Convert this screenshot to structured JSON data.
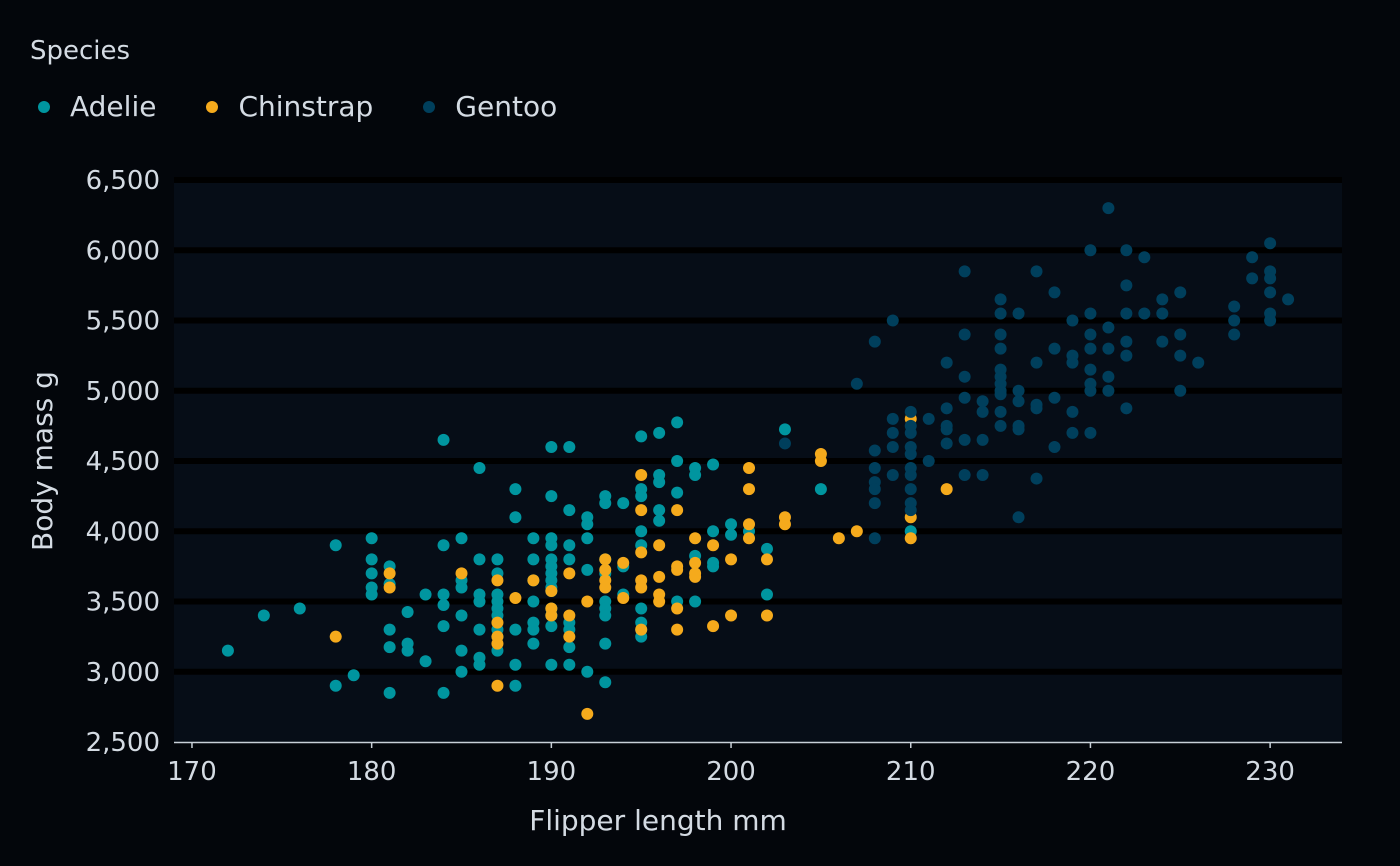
{
  "chart_data": {
    "type": "scatter",
    "xlabel": "Flipper length mm",
    "ylabel": "Body mass g",
    "xlim": [
      169,
      234
    ],
    "ylim": [
      2500,
      6500
    ],
    "x_ticks": [
      "170",
      "180",
      "190",
      "200",
      "210",
      "220",
      "230"
    ],
    "x_tick_values": [
      170,
      180,
      190,
      200,
      210,
      220,
      230
    ],
    "y_ticks": [
      "2,500",
      "3,000",
      "3,500",
      "4,000",
      "4,500",
      "5,000",
      "5,500",
      "6,000",
      "6,500"
    ],
    "y_tick_values": [
      2500,
      3000,
      3500,
      4000,
      4500,
      5000,
      5500,
      6000,
      6500
    ],
    "grid": "horizontal",
    "legend": {
      "title": "Species",
      "placement": "top-left"
    },
    "colors": {
      "background": "#03060b",
      "panel": "#060d17",
      "gridline": "#000000",
      "axis": "#c8d0d8",
      "text": "#d4dbe3"
    },
    "series": [
      {
        "name": "Adelie",
        "color": "#00959f",
        "points": [
          [
            172,
            3150
          ],
          [
            174,
            3400
          ],
          [
            176,
            3450
          ],
          [
            178,
            3900
          ],
          [
            178,
            2900
          ],
          [
            179,
            2975
          ],
          [
            180,
            3950
          ],
          [
            180,
            3800
          ],
          [
            180,
            3700
          ],
          [
            180,
            3600
          ],
          [
            180,
            3550
          ],
          [
            181,
            3750
          ],
          [
            181,
            3625
          ],
          [
            181,
            3300
          ],
          [
            181,
            3175
          ],
          [
            181,
            2850
          ],
          [
            182,
            3425
          ],
          [
            182,
            3200
          ],
          [
            182,
            3150
          ],
          [
            183,
            3550
          ],
          [
            183,
            3075
          ],
          [
            184,
            4650
          ],
          [
            184,
            3900
          ],
          [
            184,
            3550
          ],
          [
            184,
            3475
          ],
          [
            184,
            3325
          ],
          [
            184,
            2850
          ],
          [
            185,
            3950
          ],
          [
            185,
            3650
          ],
          [
            185,
            3600
          ],
          [
            185,
            3400
          ],
          [
            185,
            3150
          ],
          [
            185,
            3000
          ],
          [
            186,
            4450
          ],
          [
            186,
            3800
          ],
          [
            186,
            3550
          ],
          [
            186,
            3500
          ],
          [
            186,
            3300
          ],
          [
            186,
            3100
          ],
          [
            186,
            3050
          ],
          [
            187,
            3800
          ],
          [
            187,
            3700
          ],
          [
            187,
            3550
          ],
          [
            187,
            3500
          ],
          [
            187,
            3450
          ],
          [
            187,
            3400
          ],
          [
            187,
            3300
          ],
          [
            187,
            3250
          ],
          [
            187,
            3150
          ],
          [
            188,
            4300
          ],
          [
            188,
            4100
          ],
          [
            188,
            3300
          ],
          [
            188,
            3050
          ],
          [
            188,
            2900
          ],
          [
            189,
            3950
          ],
          [
            189,
            3800
          ],
          [
            189,
            3650
          ],
          [
            189,
            3500
          ],
          [
            189,
            3350
          ],
          [
            189,
            3300
          ],
          [
            189,
            3200
          ],
          [
            190,
            4600
          ],
          [
            190,
            4250
          ],
          [
            190,
            3950
          ],
          [
            190,
            3900
          ],
          [
            190,
            3800
          ],
          [
            190,
            3750
          ],
          [
            190,
            3700
          ],
          [
            190,
            3650
          ],
          [
            190,
            3600
          ],
          [
            190,
            3575
          ],
          [
            190,
            3450
          ],
          [
            190,
            3400
          ],
          [
            190,
            3325
          ],
          [
            190,
            3050
          ],
          [
            191,
            4600
          ],
          [
            191,
            4150
          ],
          [
            191,
            3900
          ],
          [
            191,
            3800
          ],
          [
            191,
            3350
          ],
          [
            191,
            3300
          ],
          [
            191,
            3175
          ],
          [
            191,
            3050
          ],
          [
            192,
            4100
          ],
          [
            192,
            4050
          ],
          [
            192,
            3950
          ],
          [
            192,
            3725
          ],
          [
            192,
            3000
          ],
          [
            193,
            4250
          ],
          [
            193,
            4200
          ],
          [
            193,
            3800
          ],
          [
            193,
            3700
          ],
          [
            193,
            3500
          ],
          [
            193,
            3450
          ],
          [
            193,
            3400
          ],
          [
            193,
            3200
          ],
          [
            193,
            2925
          ],
          [
            194,
            4200
          ],
          [
            194,
            3750
          ],
          [
            194,
            3550
          ],
          [
            195,
            4675
          ],
          [
            195,
            4300
          ],
          [
            195,
            4250
          ],
          [
            195,
            4000
          ],
          [
            195,
            3900
          ],
          [
            195,
            3450
          ],
          [
            195,
            3350
          ],
          [
            195,
            3300
          ],
          [
            195,
            3250
          ],
          [
            196,
            4700
          ],
          [
            196,
            4400
          ],
          [
            196,
            4350
          ],
          [
            196,
            4150
          ],
          [
            196,
            4075
          ],
          [
            197,
            4775
          ],
          [
            197,
            4500
          ],
          [
            197,
            4275
          ],
          [
            197,
            3500
          ],
          [
            198,
            4450
          ],
          [
            198,
            4400
          ],
          [
            198,
            3825
          ],
          [
            198,
            3500
          ],
          [
            199,
            4475
          ],
          [
            199,
            4000
          ],
          [
            199,
            3775
          ],
          [
            199,
            3750
          ],
          [
            200,
            4050
          ],
          [
            200,
            3975
          ],
          [
            201,
            4000
          ],
          [
            202,
            3875
          ],
          [
            202,
            3550
          ],
          [
            203,
            4725
          ],
          [
            205,
            4300
          ],
          [
            210,
            4000
          ]
        ]
      },
      {
        "name": "Chinstrap",
        "color": "#f5aa1c",
        "points": [
          [
            178,
            3250
          ],
          [
            181,
            3700
          ],
          [
            181,
            3600
          ],
          [
            185,
            3700
          ],
          [
            187,
            3650
          ],
          [
            187,
            3350
          ],
          [
            187,
            3250
          ],
          [
            187,
            3200
          ],
          [
            187,
            2900
          ],
          [
            188,
            3525
          ],
          [
            189,
            3650
          ],
          [
            190,
            3575
          ],
          [
            190,
            3450
          ],
          [
            190,
            3400
          ],
          [
            191,
            3700
          ],
          [
            191,
            3400
          ],
          [
            191,
            3250
          ],
          [
            192,
            3500
          ],
          [
            192,
            2700
          ],
          [
            193,
            3800
          ],
          [
            193,
            3725
          ],
          [
            193,
            3650
          ],
          [
            193,
            3600
          ],
          [
            194,
            3775
          ],
          [
            194,
            3525
          ],
          [
            195,
            4400
          ],
          [
            195,
            4150
          ],
          [
            195,
            3850
          ],
          [
            195,
            3650
          ],
          [
            195,
            3600
          ],
          [
            195,
            3300
          ],
          [
            196,
            3900
          ],
          [
            196,
            3675
          ],
          [
            196,
            3550
          ],
          [
            196,
            3500
          ],
          [
            197,
            4150
          ],
          [
            197,
            3750
          ],
          [
            197,
            3725
          ],
          [
            197,
            3450
          ],
          [
            197,
            3300
          ],
          [
            198,
            3950
          ],
          [
            198,
            3775
          ],
          [
            198,
            3700
          ],
          [
            198,
            3675
          ],
          [
            199,
            3900
          ],
          [
            199,
            3325
          ],
          [
            200,
            3800
          ],
          [
            200,
            3400
          ],
          [
            201,
            4450
          ],
          [
            201,
            4300
          ],
          [
            201,
            4050
          ],
          [
            201,
            3950
          ],
          [
            202,
            3800
          ],
          [
            202,
            3400
          ],
          [
            203,
            4100
          ],
          [
            203,
            4050
          ],
          [
            205,
            4550
          ],
          [
            205,
            4500
          ],
          [
            206,
            3950
          ],
          [
            207,
            4000
          ],
          [
            210,
            4800
          ],
          [
            210,
            4100
          ],
          [
            210,
            3950
          ],
          [
            212,
            4300
          ]
        ]
      },
      {
        "name": "Gentoo",
        "color": "#003f5c",
        "points": [
          [
            203,
            4625
          ],
          [
            207,
            5050
          ],
          [
            208,
            4575
          ],
          [
            208,
            4450
          ],
          [
            208,
            4350
          ],
          [
            208,
            4300
          ],
          [
            208,
            4200
          ],
          [
            208,
            3950
          ],
          [
            208,
            5350
          ],
          [
            209,
            5500
          ],
          [
            209,
            4800
          ],
          [
            209,
            4700
          ],
          [
            209,
            4600
          ],
          [
            209,
            4400
          ],
          [
            210,
            4850
          ],
          [
            210,
            4750
          ],
          [
            210,
            4700
          ],
          [
            210,
            4600
          ],
          [
            210,
            4550
          ],
          [
            210,
            4450
          ],
          [
            210,
            4400
          ],
          [
            210,
            4300
          ],
          [
            210,
            4200
          ],
          [
            210,
            4150
          ],
          [
            211,
            4800
          ],
          [
            211,
            4500
          ],
          [
            212,
            5200
          ],
          [
            212,
            4875
          ],
          [
            212,
            4750
          ],
          [
            212,
            4725
          ],
          [
            212,
            4625
          ],
          [
            213,
            5850
          ],
          [
            213,
            5400
          ],
          [
            213,
            5100
          ],
          [
            213,
            4950
          ],
          [
            213,
            4650
          ],
          [
            213,
            4400
          ],
          [
            214,
            4925
          ],
          [
            214,
            4850
          ],
          [
            214,
            4650
          ],
          [
            214,
            4400
          ],
          [
            215,
            5650
          ],
          [
            215,
            5550
          ],
          [
            215,
            5400
          ],
          [
            215,
            5300
          ],
          [
            215,
            5150
          ],
          [
            215,
            5100
          ],
          [
            215,
            5050
          ],
          [
            215,
            5000
          ],
          [
            215,
            4975
          ],
          [
            215,
            4850
          ],
          [
            215,
            4750
          ],
          [
            216,
            5550
          ],
          [
            216,
            5000
          ],
          [
            216,
            4925
          ],
          [
            216,
            4750
          ],
          [
            216,
            4725
          ],
          [
            216,
            4100
          ],
          [
            217,
            5850
          ],
          [
            217,
            5200
          ],
          [
            217,
            4900
          ],
          [
            217,
            4875
          ],
          [
            217,
            4375
          ],
          [
            218,
            5700
          ],
          [
            218,
            5300
          ],
          [
            218,
            4950
          ],
          [
            218,
            4600
          ],
          [
            219,
            5500
          ],
          [
            219,
            5250
          ],
          [
            219,
            5200
          ],
          [
            219,
            4850
          ],
          [
            219,
            4700
          ],
          [
            220,
            6000
          ],
          [
            220,
            5550
          ],
          [
            220,
            5400
          ],
          [
            220,
            5300
          ],
          [
            220,
            5150
          ],
          [
            220,
            5050
          ],
          [
            220,
            5000
          ],
          [
            220,
            4700
          ],
          [
            221,
            6300
          ],
          [
            221,
            5450
          ],
          [
            221,
            5300
          ],
          [
            221,
            5100
          ],
          [
            221,
            5000
          ],
          [
            222,
            6000
          ],
          [
            222,
            5750
          ],
          [
            222,
            5550
          ],
          [
            222,
            5350
          ],
          [
            222,
            5250
          ],
          [
            222,
            4875
          ],
          [
            223,
            5950
          ],
          [
            223,
            5550
          ],
          [
            224,
            5650
          ],
          [
            224,
            5550
          ],
          [
            224,
            5350
          ],
          [
            225,
            5700
          ],
          [
            225,
            5400
          ],
          [
            225,
            5250
          ],
          [
            225,
            5000
          ],
          [
            226,
            5200
          ],
          [
            228,
            5600
          ],
          [
            228,
            5500
          ],
          [
            228,
            5400
          ],
          [
            229,
            5950
          ],
          [
            229,
            5800
          ],
          [
            230,
            6050
          ],
          [
            230,
            5850
          ],
          [
            230,
            5800
          ],
          [
            230,
            5700
          ],
          [
            230,
            5550
          ],
          [
            230,
            5500
          ],
          [
            231,
            5650
          ]
        ]
      }
    ]
  }
}
